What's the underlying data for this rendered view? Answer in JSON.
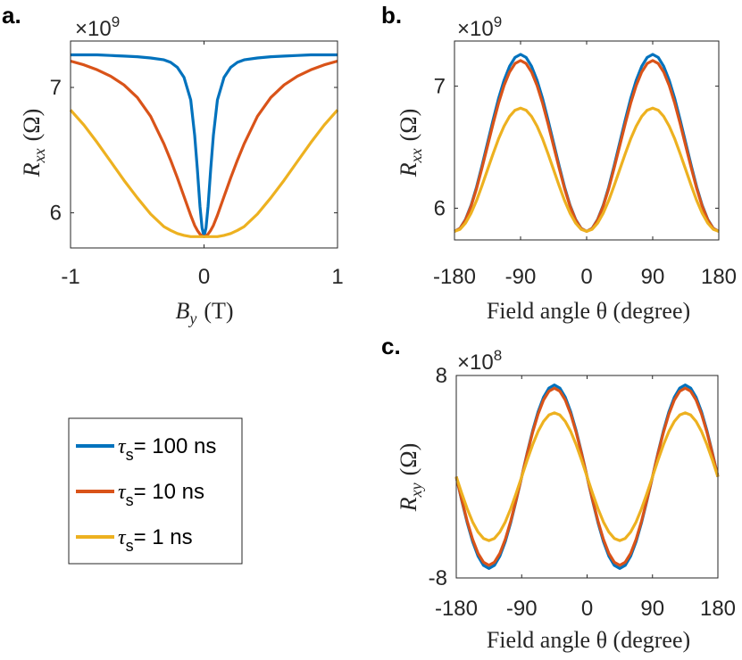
{
  "legend": {
    "items": [
      {
        "symbol": "τ",
        "sub": "s",
        "text": "= 100 ns",
        "color": "#0072BD"
      },
      {
        "symbol": "τ",
        "sub": "s",
        "text": "= 10 ns",
        "color": "#D95319"
      },
      {
        "symbol": "τ",
        "sub": "s",
        "text": "= 1 ns",
        "color": "#EDB120"
      }
    ]
  },
  "chart_data": [
    {
      "panel": "a.",
      "type": "line",
      "xlabel": "B_y (T)",
      "xlabel_main": "B",
      "xlabel_sub": "y",
      "xlabel_unit": "(T)",
      "ylabel": "R_xx (Ω)",
      "ylabel_main": "R",
      "ylabel_sub": "xx",
      "ylabel_unit": "(Ω)",
      "exponent": "×10",
      "exponent_power": "9",
      "xlim": [
        -1,
        1
      ],
      "ylim": [
        5.72,
        7.37
      ],
      "xticks": [
        -1,
        0,
        1
      ],
      "xtick_labels": [
        "-1",
        "0",
        "1"
      ],
      "yticks": [
        6,
        7
      ],
      "ytick_labels": [
        "6",
        "7"
      ],
      "x": [
        -1,
        -0.9,
        -0.8,
        -0.7,
        -0.6,
        -0.5,
        -0.4,
        -0.3,
        -0.25,
        -0.2,
        -0.15,
        -0.1,
        -0.07,
        -0.05,
        -0.03,
        -0.015,
        0,
        0.015,
        0.03,
        0.05,
        0.07,
        0.1,
        0.15,
        0.2,
        0.25,
        0.3,
        0.4,
        0.5,
        0.6,
        0.7,
        0.8,
        0.9,
        1
      ],
      "series": [
        {
          "name": "τs = 100 ns",
          "color": "#0072BD",
          "values": [
            7.26,
            7.26,
            7.26,
            7.255,
            7.25,
            7.245,
            7.235,
            7.22,
            7.2,
            7.16,
            7.08,
            6.9,
            6.62,
            6.35,
            6.05,
            5.88,
            5.81,
            5.88,
            6.05,
            6.35,
            6.62,
            6.9,
            7.08,
            7.16,
            7.2,
            7.22,
            7.235,
            7.245,
            7.25,
            7.255,
            7.26,
            7.26,
            7.26
          ]
        },
        {
          "name": "τs = 10 ns",
          "color": "#D95319",
          "values": [
            7.21,
            7.18,
            7.14,
            7.09,
            7.02,
            6.92,
            6.77,
            6.55,
            6.42,
            6.28,
            6.13,
            5.98,
            5.9,
            5.86,
            5.83,
            5.815,
            5.81,
            5.815,
            5.83,
            5.86,
            5.9,
            5.98,
            6.13,
            6.28,
            6.42,
            6.55,
            6.77,
            6.92,
            7.02,
            7.09,
            7.14,
            7.18,
            7.21
          ]
        },
        {
          "name": "τs = 1 ns",
          "color": "#EDB120",
          "values": [
            6.82,
            6.7,
            6.56,
            6.41,
            6.26,
            6.12,
            5.99,
            5.89,
            5.86,
            5.835,
            5.82,
            5.81,
            5.81,
            5.81,
            5.81,
            5.81,
            5.81,
            5.81,
            5.81,
            5.81,
            5.81,
            5.81,
            5.82,
            5.835,
            5.86,
            5.89,
            5.99,
            6.12,
            6.26,
            6.41,
            6.56,
            6.7,
            6.82
          ]
        }
      ]
    },
    {
      "panel": "b.",
      "type": "line",
      "xlabel": "Field angle θ (degree)",
      "xlabel_main": "Field angle θ (degree)",
      "ylabel": "R_xx (Ω)",
      "ylabel_main": "R",
      "ylabel_sub": "xx",
      "ylabel_unit": "(Ω)",
      "exponent": "×10",
      "exponent_power": "9",
      "xlim": [
        -180,
        180
      ],
      "ylim": [
        5.74,
        7.37
      ],
      "xticks": [
        -180,
        -90,
        0,
        90,
        180
      ],
      "xtick_labels": [
        "-180",
        "-90",
        "0",
        "90",
        "180"
      ],
      "yticks": [
        6,
        7
      ],
      "ytick_labels": [
        "6",
        "7"
      ],
      "x_start": -180,
      "x_step": 7.5,
      "points": 49,
      "series": [
        {
          "name": "τs = 100 ns",
          "color": "#0072BD",
          "base": 5.81,
          "amp": 1.45
        },
        {
          "name": "τs = 10 ns",
          "color": "#D95319",
          "base": 5.81,
          "amp": 1.4
        },
        {
          "name": "τs = 1 ns",
          "color": "#EDB120",
          "base": 5.81,
          "amp": 1.01
        }
      ],
      "model": "base + amp*sin^2(theta)"
    },
    {
      "panel": "c.",
      "type": "line",
      "xlabel": "Field angle θ (degree)",
      "xlabel_main": "Field angle θ (degree)",
      "ylabel": "R_xy (Ω)",
      "ylabel_main": "R",
      "ylabel_sub": "xy",
      "ylabel_unit": "(Ω)",
      "exponent": "×10",
      "exponent_power": "8",
      "xlim": [
        -180,
        180
      ],
      "ylim": [
        -8,
        8
      ],
      "xticks": [
        -180,
        -90,
        0,
        90,
        180
      ],
      "xtick_labels": [
        "-180",
        "-90",
        "0",
        "90",
        "180"
      ],
      "yticks": [
        -8,
        8
      ],
      "ytick_labels": [
        "-8",
        "8"
      ],
      "x_start": -180,
      "x_step": 7.5,
      "points": 49,
      "series": [
        {
          "name": "τs = 100 ns",
          "color": "#0072BD",
          "amp": 7.25
        },
        {
          "name": "τs = 10 ns",
          "color": "#D95319",
          "amp": 7.0
        },
        {
          "name": "τs = 1 ns",
          "color": "#EDB120",
          "amp": 5.05
        }
      ],
      "model": "-amp*sin(2*theta)"
    }
  ]
}
